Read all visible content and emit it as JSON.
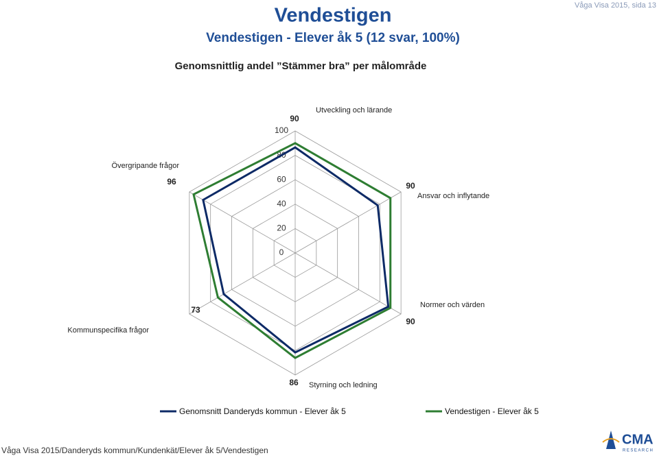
{
  "header": {
    "title": "Vendestigen",
    "page_ref": "Våga Visa 2015, sida 13",
    "subtitle": "Vendestigen - Elever åk 5 (12 svar, 100%)"
  },
  "chart_data": {
    "type": "radar",
    "title": "Genomsnittlig andel ”Stämmer bra” per målområde",
    "categories": [
      "Utveckling och lärande",
      "Ansvar och inflytande",
      "Normer och värden",
      "Styrning och ledning",
      "Kommunspecifika frågor",
      "Övergripande frågor"
    ],
    "series": [
      {
        "name": "Genomsnitt Danderyds kommun - Elever åk 5",
        "color": "#0d2a66",
        "values": [
          86.5,
          78,
          88,
          81.5,
          67.5,
          87
        ]
      },
      {
        "name": "Vendestigen - Elever åk 5",
        "color": "#2e7d32",
        "values": [
          90,
          90,
          90,
          86,
          73,
          96
        ]
      }
    ],
    "rlim": [
      0,
      100
    ],
    "rticks": [
      0,
      20,
      40,
      60,
      80,
      100
    ],
    "grid": true
  },
  "footer": {
    "path": "Våga Visa 2015/Danderyds kommun/Kundenkät/Elever åk 5/Vendestigen",
    "logo": "CMA",
    "logo_sub": "RESEARCH"
  }
}
